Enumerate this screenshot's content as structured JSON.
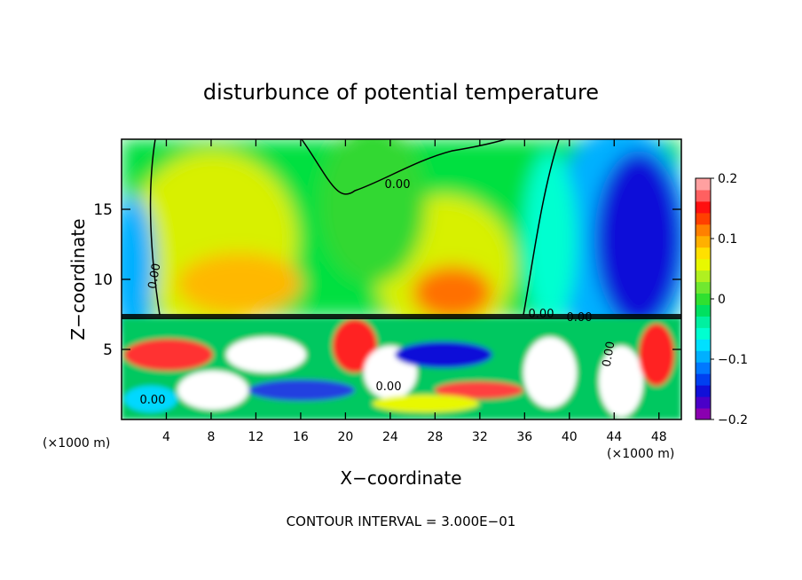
{
  "chart_data": {
    "type": "heatmap",
    "title": "disturbunce of potential temperature",
    "xlabel": "X−coordinate",
    "ylabel": "Z−coordinate",
    "x_unit": "(×1000 m)",
    "x_unit_right": "(×1000 m)",
    "footer": "CONTOUR INTERVAL = 3.000E−01",
    "xlim": [
      0,
      50
    ],
    "ylim": [
      0,
      20
    ],
    "x_ticks": [
      4,
      8,
      12,
      16,
      20,
      24,
      28,
      32,
      36,
      40,
      44,
      48
    ],
    "x_tick_labels": [
      "4",
      "8",
      "12",
      "16",
      "20",
      "24",
      "28",
      "32",
      "36",
      "40",
      "44",
      "48"
    ],
    "y_ticks": [
      5,
      10,
      15
    ],
    "y_tick_labels": [
      "5",
      "10",
      "15"
    ],
    "colorbar": {
      "range": [
        -0.2,
        0.2
      ],
      "ticks": [
        -0.2,
        -0.1,
        0,
        0.1,
        0.2
      ],
      "tick_labels": [
        "−0.2",
        "−0.1",
        "0",
        "0.1",
        "0.2"
      ],
      "colors": [
        "#8a00b0",
        "#4a00c8",
        "#1010d8",
        "#0040f0",
        "#0078ff",
        "#00b0ff",
        "#00e0ff",
        "#00ffd0",
        "#00f0a0",
        "#00e060",
        "#30e030",
        "#70e830",
        "#b0f020",
        "#e8f800",
        "#ffe000",
        "#ffb000",
        "#ff8000",
        "#ff4000",
        "#ff1010",
        "#ff6060",
        "#ffa0a0"
      ]
    },
    "contour_labels": [
      "0.00",
      "0.00",
      "0.00",
      "0.00",
      "0.00",
      "0.00",
      "0.00"
    ],
    "regions": [
      {
        "x": 10,
        "z": 13,
        "value": 0.08
      },
      {
        "x": 30,
        "z": 10,
        "value": 0.12
      },
      {
        "x": 21,
        "z": 16,
        "value": 0.0
      },
      {
        "x": 46,
        "z": 14,
        "value": -0.18
      },
      {
        "x": 2,
        "z": 10,
        "value": -0.1
      }
    ]
  }
}
